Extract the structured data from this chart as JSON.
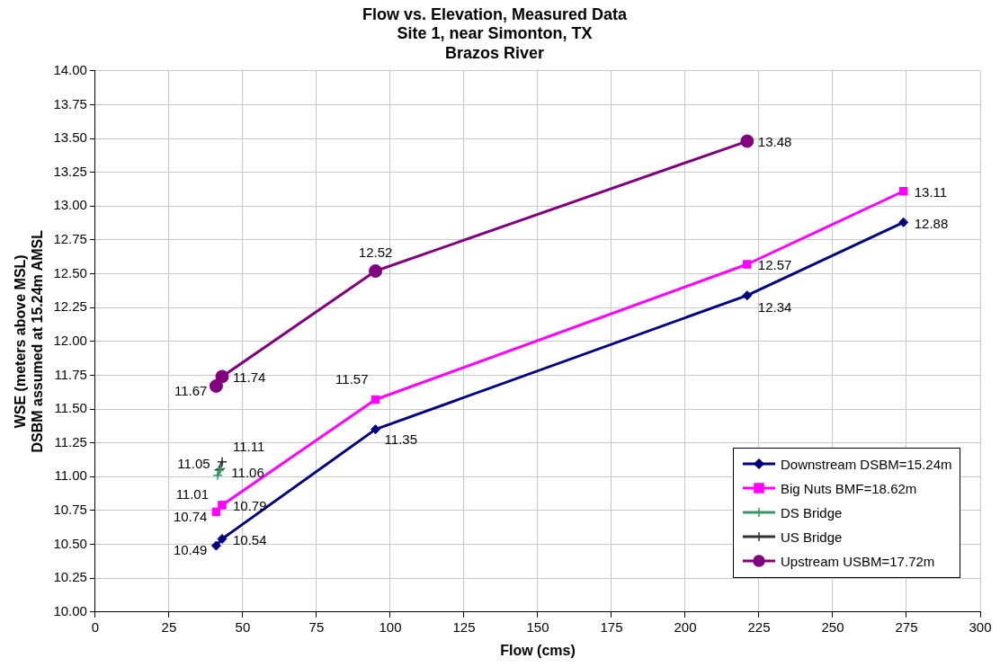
{
  "chart_data": {
    "type": "line",
    "title": "Flow vs. Elevation, Measured Data",
    "subtitle": "Site 1, near Simonton, TX\nBrazos River",
    "xlabel": "Flow (cms)",
    "ylabel": "WSE (meters above MSL)\nDSBM assumed at 15.24m AMSL",
    "xlim": [
      0,
      300
    ],
    "xticks": [
      0,
      25,
      50,
      75,
      100,
      125,
      150,
      175,
      200,
      225,
      250,
      275,
      300
    ],
    "ylim": [
      10,
      14
    ],
    "yticks": [
      {
        "value": 10,
        "label": "10.00"
      },
      {
        "value": 10.25,
        "label": "10.25"
      },
      {
        "value": 10.5,
        "label": "10.50"
      },
      {
        "value": 10.75,
        "label": "10.75"
      },
      {
        "value": 11,
        "label": "11.00"
      },
      {
        "value": 11.25,
        "label": "11.25"
      },
      {
        "value": 11.5,
        "label": "11.50"
      },
      {
        "value": 11.75,
        "label": "11.75"
      },
      {
        "value": 12,
        "label": "12.00"
      },
      {
        "value": 12.25,
        "label": "12.25"
      },
      {
        "value": 12.5,
        "label": "12.50"
      },
      {
        "value": 12.75,
        "label": "12.75"
      },
      {
        "value": 13,
        "label": "13.00"
      },
      {
        "value": 13.25,
        "label": "13.25"
      },
      {
        "value": 13.5,
        "label": "13.50"
      },
      {
        "value": 13.75,
        "label": "13.75"
      },
      {
        "value": 14,
        "label": "14.00"
      }
    ],
    "grid": true,
    "legend": "bottom right",
    "data_labels": true,
    "line_style": "solid",
    "series": [
      {
        "name": "Downstream DSBM=15.24m",
        "color": "#000080",
        "marker": "diamond",
        "x": [
          41,
          43,
          95,
          221,
          274
        ],
        "values": [
          10.49,
          10.54,
          11.35,
          12.34,
          12.88
        ]
      },
      {
        "name": "Big Nuts BMF=18.62m",
        "color": "#ff00ff",
        "marker": "square",
        "x": [
          41,
          43,
          95,
          221,
          274
        ],
        "values": [
          10.74,
          10.79,
          11.57,
          12.57,
          13.11
        ]
      },
      {
        "name": "DS Bridge",
        "color": "#339966",
        "marker": "cross",
        "x": [
          41.5,
          42.5
        ],
        "values": [
          11.01,
          11.06
        ]
      },
      {
        "name": "US Bridge",
        "color": "#333333",
        "marker": "cross",
        "x": [
          42,
          43
        ],
        "values": [
          11.05,
          11.11
        ]
      },
      {
        "name": "Upstream USBM=17.72m",
        "color": "#800080",
        "marker": "circle",
        "x": [
          41,
          43,
          95,
          221
        ],
        "values": [
          11.67,
          11.74,
          12.52,
          13.48
        ]
      }
    ]
  }
}
